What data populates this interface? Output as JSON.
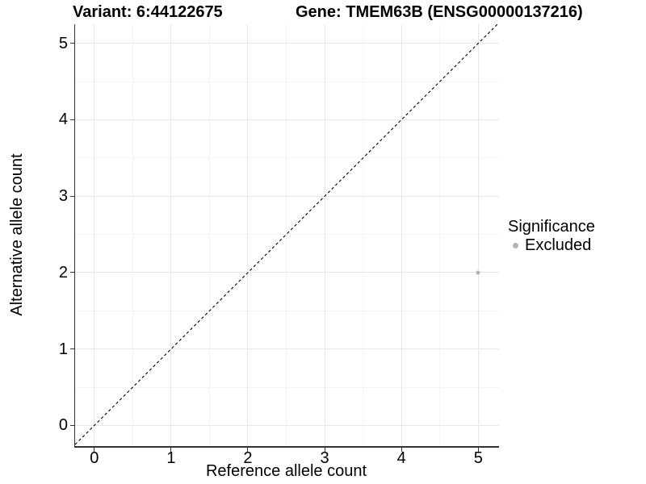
{
  "titles": {
    "variant": "Variant: 6:44122675",
    "gene": "Gene: TMEM63B (ENSG00000137216)"
  },
  "legend": {
    "title": "Significance",
    "items": [
      {
        "label": "Excluded",
        "color": "#b4b4b4"
      }
    ]
  },
  "chart_data": {
    "type": "scatter",
    "title_left": "Variant: 6:44122675",
    "title_right": "Gene: TMEM63B (ENSG00000137216)",
    "xlabel": "Reference allele count",
    "ylabel": "Alternative allele count",
    "xlim": [
      -0.25,
      5.27
    ],
    "ylim": [
      -0.27,
      5.25
    ],
    "xticks": [
      0,
      1,
      2,
      3,
      4,
      5
    ],
    "yticks": [
      0,
      1,
      2,
      3,
      4,
      5
    ],
    "minor_xticks": [
      0.5,
      1.5,
      2.5,
      3.5,
      4.5
    ],
    "minor_yticks": [
      0.5,
      1.5,
      2.5,
      3.5,
      4.5
    ],
    "grid": "major+minor",
    "legend_position": "right",
    "legend_title": "Significance",
    "reference_line": {
      "type": "identity",
      "slope": 1,
      "intercept": 0,
      "style": "dashed",
      "color": "#000000"
    },
    "series": [
      {
        "name": "Excluded",
        "color": "#b4b4b4",
        "points": [
          {
            "x": 5,
            "y": 2
          }
        ]
      }
    ]
  },
  "colors": {
    "grid_major": "#e7e7e7",
    "grid_minor": "#f4f4f4",
    "axis_line": "#333333",
    "text": "#000000"
  }
}
